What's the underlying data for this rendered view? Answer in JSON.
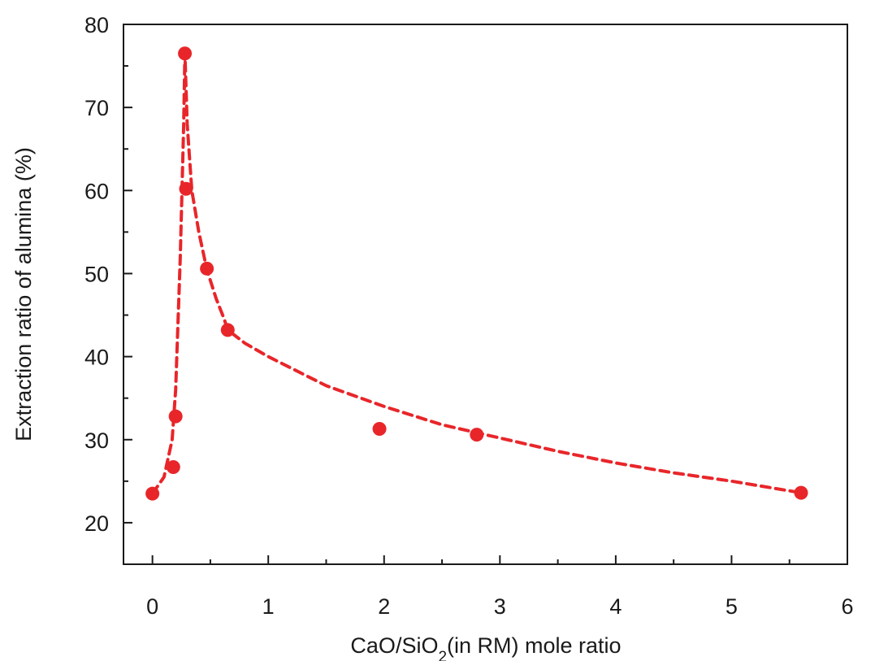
{
  "chart_data": {
    "type": "scatter",
    "title": "",
    "xlabel": "CaO/SiO2(in RM) mole ratio",
    "xlabel_parts": {
      "before": "CaO/SiO",
      "subscript": "2",
      "after": "(in RM) mole ratio"
    },
    "ylabel": "Extraction ratio of alumina (%)",
    "xlim": [
      -0.25,
      6
    ],
    "ylim": [
      15,
      80
    ],
    "xticks": [
      0,
      1,
      2,
      3,
      4,
      5,
      6
    ],
    "yticks": [
      20,
      30,
      40,
      50,
      60,
      70,
      80
    ],
    "grid": false,
    "legend": "none",
    "color": "#e8262a",
    "series": [
      {
        "style": "markers",
        "x": [
          0.0,
          0.18,
          0.2,
          0.28,
          0.29,
          0.47,
          0.65,
          1.96,
          2.8,
          5.6
        ],
        "y": [
          23.5,
          26.7,
          32.8,
          76.5,
          60.2,
          50.6,
          43.2,
          31.3,
          30.6,
          23.6
        ]
      },
      {
        "style": "dashed-line",
        "x": [
          0.0,
          0.1,
          0.17,
          0.2,
          0.24,
          0.27,
          0.28,
          0.3,
          0.34,
          0.4,
          0.47,
          0.55,
          0.62,
          0.65,
          0.8,
          1.0,
          1.5,
          2.0,
          2.5,
          3.0,
          3.5,
          4.0,
          4.5,
          5.0,
          5.6
        ],
        "y": [
          23.5,
          25.5,
          30.0,
          36.0,
          52.0,
          68.0,
          76.5,
          68.0,
          60.0,
          55.0,
          50.5,
          47.0,
          44.5,
          43.2,
          41.6,
          40.0,
          36.5,
          34.0,
          31.8,
          30.2,
          28.6,
          27.2,
          26.0,
          25.0,
          23.6
        ]
      }
    ]
  }
}
